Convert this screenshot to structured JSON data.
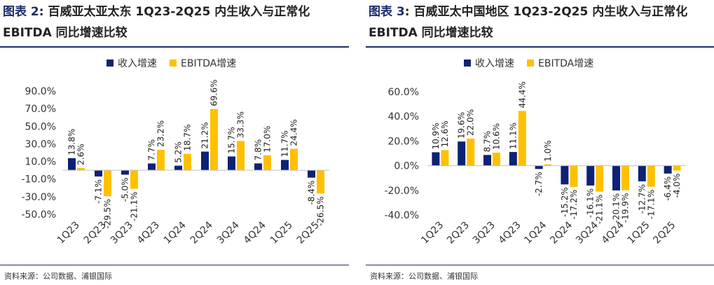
{
  "colors": {
    "series1": "#0d2275",
    "series2": "#ffc000",
    "brand": "#1b2d6b"
  },
  "left": {
    "title_label": "图表 2",
    "title_text": ": 百威亚太亚太东 1Q23-2Q25 内生收入与正常化 EBITDA 同比增速比较",
    "source": "资料来源：公司数据、浦银国际"
  },
  "right": {
    "title_label": "图表 3",
    "title_text": ": 百威亚太中国地区 1Q23-2Q25 内生收入与正常化 EBITDA 同比增速比较",
    "source": "资料来源：公司数据、浦银国际"
  },
  "chart_data": [
    {
      "type": "bar",
      "categories": [
        "1Q23",
        "2Q23",
        "3Q23",
        "4Q23",
        "1Q24",
        "2Q24",
        "3Q24",
        "4Q24",
        "1Q25",
        "2Q25"
      ],
      "series": [
        {
          "name": "收入增速",
          "values": [
            13.8,
            -7.1,
            -5.0,
            7.7,
            5.2,
            21.2,
            15.7,
            7.8,
            11.7,
            -8.4
          ],
          "labels": [
            "13.8%",
            "-7.1%",
            "-5.0%",
            "7.7%",
            "5.2%",
            "21.2%",
            "15.7%",
            "7.8%",
            "11.7%",
            "-8.4%"
          ]
        },
        {
          "name": "EBITDA增速",
          "values": [
            2.6,
            -29.5,
            -21.1,
            23.2,
            18.7,
            69.6,
            33.3,
            17.0,
            24.4,
            -26.5
          ],
          "labels": [
            "2.6%",
            "-29.5%",
            "-21.1%",
            "23.2%",
            "18.7%",
            "69.6%",
            "33.3%",
            "17.0%",
            "24.4%",
            "-26.5%"
          ]
        }
      ],
      "ylim": [
        -50,
        90
      ],
      "yticks": [
        -50,
        -30,
        -10,
        10,
        30,
        50,
        70,
        90
      ],
      "ytick_labels": [
        "-50.0%",
        "-30.0%",
        "-10.0%",
        "10.0%",
        "30.0%",
        "50.0%",
        "70.0%",
        "90.0%"
      ],
      "grid": false,
      "legend": "top"
    },
    {
      "type": "bar",
      "categories": [
        "1Q23",
        "2Q23",
        "3Q23",
        "4Q23",
        "1Q24",
        "2Q24",
        "3Q24",
        "4Q24",
        "1Q25",
        "2Q25"
      ],
      "series": [
        {
          "name": "收入增速",
          "values": [
            10.9,
            19.6,
            8.7,
            11.1,
            -2.7,
            -15.2,
            -16.1,
            -20.1,
            -12.7,
            -6.4
          ],
          "labels": [
            "10.9%",
            "19.6%",
            "8.7%",
            "11.1%",
            "-2.7%",
            "-15.2%",
            "-16.1%",
            "-20.1%",
            "-12.7%",
            "-6.4%"
          ]
        },
        {
          "name": "EBITDA增速",
          "values": [
            12.6,
            22.0,
            10.6,
            44.4,
            1.0,
            -17.2,
            -21.1,
            -19.9,
            -17.1,
            -4.0
          ],
          "labels": [
            "12.6%",
            "22.0%",
            "10.6%",
            "44.4%",
            "1.0%",
            "-17.2%",
            "-21.1%",
            "-19.9%",
            "-17.1%",
            "-4.0%"
          ]
        }
      ],
      "ylim": [
        -40,
        60
      ],
      "yticks": [
        -40,
        -20,
        0,
        20,
        40,
        60
      ],
      "ytick_labels": [
        "-40.0%",
        "-20.0%",
        "0.0%",
        "20.0%",
        "40.0%",
        "60.0%"
      ],
      "grid": false,
      "legend": "top"
    }
  ]
}
